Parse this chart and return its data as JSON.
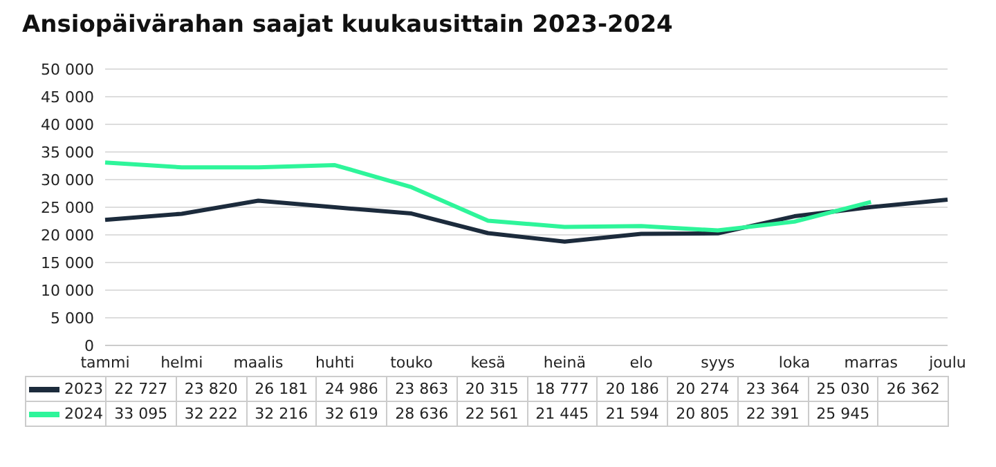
{
  "chart_data": {
    "type": "line",
    "title": "Ansiopäivärahan saajat kuukausittain 2023-2024",
    "categories": [
      "tammi",
      "helmi",
      "maalis",
      "huhti",
      "touko",
      "kesä",
      "heinä",
      "elo",
      "syys",
      "loka",
      "marras",
      "joulu"
    ],
    "series": [
      {
        "name": "2023",
        "color": "#1c2b3c",
        "values": [
          22727,
          23820,
          26181,
          24986,
          23863,
          20315,
          18777,
          20186,
          20274,
          23364,
          25030,
          26362
        ]
      },
      {
        "name": "2024",
        "color": "#2ef59a",
        "values": [
          33095,
          32222,
          32216,
          32619,
          28636,
          22561,
          21445,
          21594,
          20805,
          22391,
          25945,
          null
        ]
      }
    ],
    "ylim": [
      0,
      50000
    ],
    "yticks": [
      0,
      5000,
      10000,
      15000,
      20000,
      25000,
      30000,
      35000,
      40000,
      45000,
      50000
    ],
    "grid": "y",
    "legend": "bottom",
    "data_labels": true,
    "marker": "none",
    "line_style": "solid"
  }
}
